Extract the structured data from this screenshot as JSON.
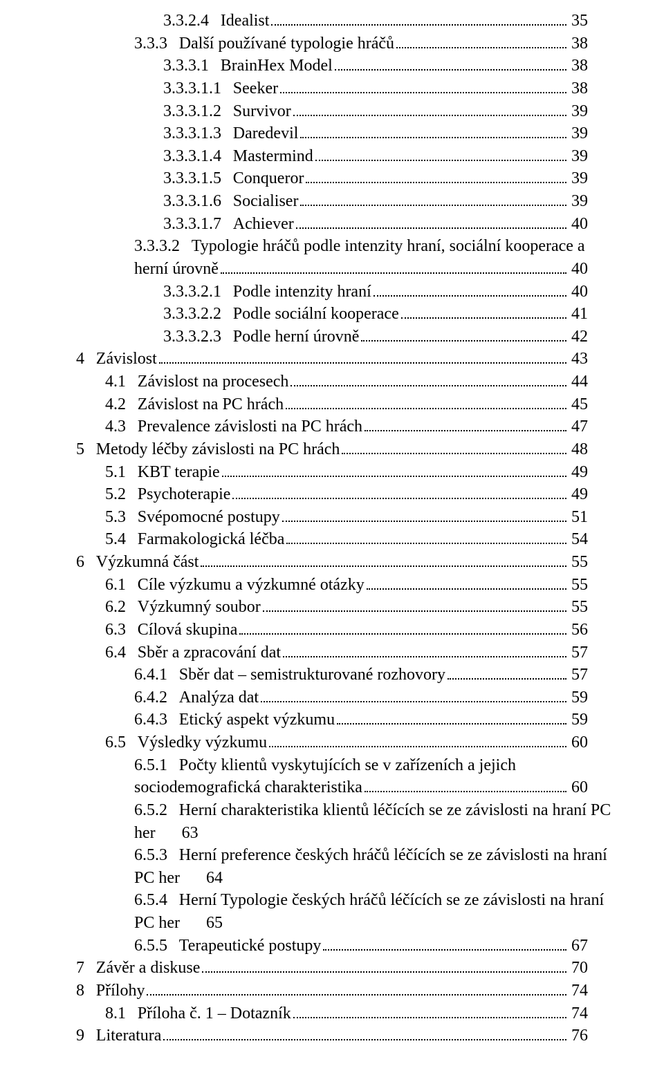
{
  "fontFamily": "Times New Roman",
  "fontSizePt": 18,
  "textColor": "#000000",
  "backgroundColor": "#ffffff",
  "dotLeaderColor": "#000000",
  "indentPxPerLevel": 42,
  "toc": [
    {
      "level": 3,
      "num": "3.3.2.4",
      "title": "Idealist",
      "page": "35"
    },
    {
      "level": 2,
      "num": "3.3.3",
      "title": "Další používané typologie hráčů",
      "page": "38"
    },
    {
      "level": 3,
      "num": "3.3.3.1",
      "title": "BrainHex Model",
      "page": "38"
    },
    {
      "level": 3,
      "num": "3.3.3.1.1",
      "title": "Seeker",
      "page": "38"
    },
    {
      "level": 3,
      "num": "3.3.3.1.2",
      "title": "Survivor",
      "page": "39"
    },
    {
      "level": 3,
      "num": "3.3.3.1.3",
      "title": "Daredevil",
      "page": "39"
    },
    {
      "level": 3,
      "num": "3.3.3.1.4",
      "title": "Mastermind",
      "page": "39"
    },
    {
      "level": 3,
      "num": "3.3.3.1.5",
      "title": "Conqueror",
      "page": "39"
    },
    {
      "level": 3,
      "num": "3.3.3.1.6",
      "title": "Socialiser",
      "page": "39"
    },
    {
      "level": 3,
      "num": "3.3.3.1.7",
      "title": "Achiever",
      "page": "40"
    },
    {
      "level": 2,
      "num": "3.3.3.2",
      "title": "Typologie hráčů podle intenzity hraní, sociální kooperace a",
      "title2": "herní úrovně",
      "page": "40",
      "wrap": true
    },
    {
      "level": 3,
      "num": "3.3.3.2.1",
      "title": "Podle intenzity hraní",
      "page": "40"
    },
    {
      "level": 3,
      "num": "3.3.3.2.2",
      "title": "Podle sociální kooperace",
      "page": "41"
    },
    {
      "level": 3,
      "num": "3.3.3.2.3",
      "title": "Podle herní úrovně",
      "page": "42"
    },
    {
      "level": 0,
      "num": "4",
      "title": "Závislost",
      "page": "43"
    },
    {
      "level": 1,
      "num": "4.1",
      "title": "Závislost na procesech",
      "page": "44"
    },
    {
      "level": 1,
      "num": "4.2",
      "title": "Závislost na PC hrách",
      "page": "45"
    },
    {
      "level": 1,
      "num": "4.3",
      "title": "Prevalence závislosti na PC hrách",
      "page": "47"
    },
    {
      "level": 0,
      "num": "5",
      "title": "Metody léčby závislosti na PC hrách",
      "page": "48"
    },
    {
      "level": 1,
      "num": "5.1",
      "title": "KBT terapie",
      "page": "49"
    },
    {
      "level": 1,
      "num": "5.2",
      "title": "Psychoterapie",
      "page": "49"
    },
    {
      "level": 1,
      "num": "5.3",
      "title": "Svépomocné postupy",
      "page": "51"
    },
    {
      "level": 1,
      "num": "5.4",
      "title": "Farmakologická léčba",
      "page": "54"
    },
    {
      "level": 0,
      "num": "6",
      "title": "Výzkumná část",
      "page": "55"
    },
    {
      "level": 1,
      "num": "6.1",
      "title": "Cíle výzkumu a výzkumné otázky",
      "page": "55"
    },
    {
      "level": 1,
      "num": "6.2",
      "title": "Výzkumný soubor",
      "page": "55"
    },
    {
      "level": 1,
      "num": "6.3",
      "title": "Cílová skupina",
      "page": "56"
    },
    {
      "level": 1,
      "num": "6.4",
      "title": "Sběr a zpracování dat",
      "page": "57"
    },
    {
      "level": 2,
      "num": "6.4.1",
      "title": "Sběr dat – semistrukturované rozhovory",
      "page": "57"
    },
    {
      "level": 2,
      "num": "6.4.2",
      "title": "Analýza dat",
      "page": "59"
    },
    {
      "level": 2,
      "num": "6.4.3",
      "title": "Etický aspekt výzkumu",
      "page": "59"
    },
    {
      "level": 1,
      "num": "6.5",
      "title": "Výsledky výzkumu",
      "page": "60"
    },
    {
      "level": 2,
      "num": "6.5.1",
      "title": "Počty klientů vyskytujících se v zařízeních a jejich",
      "title2": "sociodemografická charakteristika",
      "page": "60",
      "wrap": true
    },
    {
      "level": 2,
      "num": "6.5.2",
      "title": "Herní charakteristika klientů léčících se ze závislosti na hraní PC",
      "title2": "her",
      "page": "63",
      "tabPage": true
    },
    {
      "level": 2,
      "num": "6.5.3",
      "title": "Herní preference českých hráčů léčících se ze závislosti na hraní",
      "title2": "PC her",
      "page": "64",
      "tabPage": true
    },
    {
      "level": 2,
      "num": "6.5.4",
      "title": "Herní Typologie českých hráčů léčících se ze závislosti na hraní",
      "title2": "PC her",
      "page": "65",
      "tabPage": true
    },
    {
      "level": 2,
      "num": "6.5.5",
      "title": "Terapeutické postupy",
      "page": "67"
    },
    {
      "level": 0,
      "num": "7",
      "title": "Závěr a diskuse",
      "page": "70"
    },
    {
      "level": 0,
      "num": "8",
      "title": "Přílohy",
      "page": "74"
    },
    {
      "level": 1,
      "num": "8.1",
      "title": "Příloha č. 1 – Dotazník",
      "page": "74"
    },
    {
      "level": 0,
      "num": "9",
      "title": "Literatura",
      "page": "76"
    }
  ]
}
